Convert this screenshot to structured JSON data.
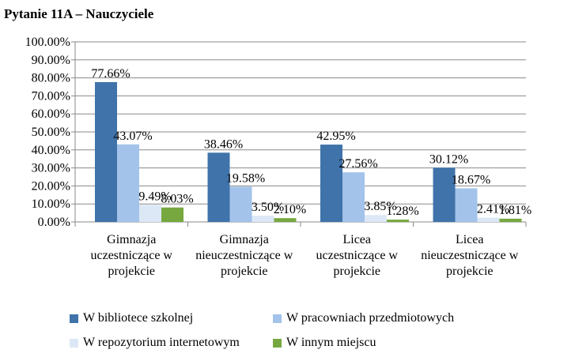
{
  "chart_data": {
    "type": "bar",
    "title": "Pytanie 11A – Nauczyciele",
    "categories": [
      [
        "Gimnazja",
        "uczestniczące w",
        "projekcie"
      ],
      [
        "Gimnazja",
        "nieuczestniczące w",
        "projekcie"
      ],
      [
        "Licea",
        "uczestniczące w",
        "projekcie"
      ],
      [
        "Licea",
        "nieuczestniczące w",
        "projekcie"
      ]
    ],
    "series": [
      {
        "name": "W bibliotece szkolnej",
        "color": "#3f73aa",
        "values": [
          77.66,
          38.46,
          42.95,
          30.12
        ],
        "labels": [
          "77.66%",
          "38.46%",
          "42.95%",
          "30.12%"
        ]
      },
      {
        "name": "W pracowniach przedmiotowych",
        "color": "#a3c3ea",
        "values": [
          43.07,
          19.58,
          27.56,
          18.67
        ],
        "labels": [
          "43.07%",
          "19.58%",
          "27.56%",
          "18.67%"
        ]
      },
      {
        "name": "W repozytorium internetowym",
        "color": "#dde8f6",
        "values": [
          9.49,
          3.5,
          3.85,
          2.41
        ],
        "labels": [
          "9.49%",
          "3.50%",
          "3.85%",
          "2.41%"
        ]
      },
      {
        "name": "W innym miejscu",
        "color": "#76a83f",
        "values": [
          8.03,
          2.1,
          1.28,
          1.81
        ],
        "labels": [
          "8.03%",
          "2.10%",
          "1.28%",
          "1.81%"
        ]
      }
    ],
    "ylim": [
      0,
      100
    ],
    "yticks": [
      0,
      10,
      20,
      30,
      40,
      50,
      60,
      70,
      80,
      90,
      100
    ],
    "ytick_labels": [
      "0.00%",
      "10.00%",
      "20.00%",
      "30.00%",
      "40.00%",
      "50.00%",
      "60.00%",
      "70.00%",
      "80.00%",
      "90.00%",
      "100.00%"
    ],
    "grid": true,
    "legend_position": "bottom"
  }
}
